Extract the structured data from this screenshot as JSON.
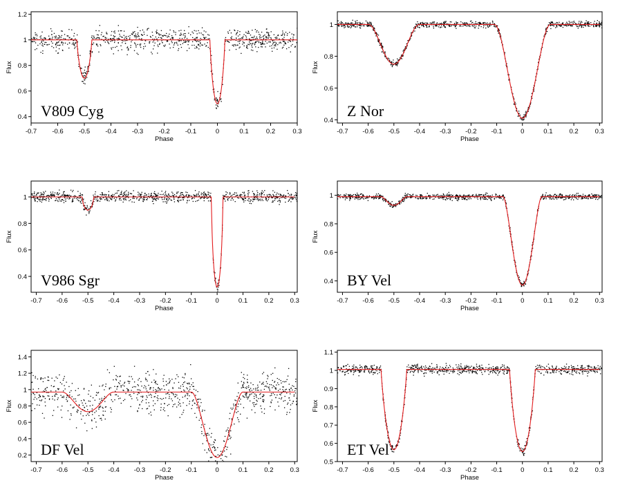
{
  "colors": {
    "model_curve": "#e31a1c",
    "data_points": "#000000",
    "axes": "#000000"
  },
  "chart_data": [
    {
      "type": "scatter",
      "star": "V809 Cyg",
      "xlabel": "Phase",
      "ylabel": "Flux",
      "xlim": [
        -0.7,
        0.3
      ],
      "ylim": [
        0.35,
        1.22
      ],
      "xticks": [
        -0.7,
        -0.6,
        -0.5,
        -0.4,
        -0.3,
        -0.2,
        -0.1,
        0,
        0.1,
        0.2,
        0.3
      ],
      "yticks": [
        0.4,
        0.6,
        0.8,
        1,
        1.2
      ],
      "tick_labels_x": [
        "-0.7",
        "-0.6",
        "-0.5",
        "-0.4",
        "-0.3",
        "-0.2",
        "-0.1",
        "0",
        "0.1",
        "0.2",
        "0.3"
      ],
      "tick_labels_y": [
        "0.4",
        "0.6",
        "0.8",
        "1",
        "1.2"
      ],
      "grid": false,
      "model": {
        "baseline": 1.0,
        "primary_depth": 0.5,
        "primary_halfwidth": 0.028,
        "secondary_depth": 0.3,
        "secondary_halfwidth": 0.028,
        "shape": 0.8
      },
      "noise": 0.05
    },
    {
      "type": "scatter",
      "star": "Z Nor",
      "xlabel": "Phase",
      "ylabel": "Flux",
      "xlim": [
        -0.72,
        0.31
      ],
      "ylim": [
        0.38,
        1.08
      ],
      "xticks": [
        -0.7,
        -0.6,
        -0.5,
        -0.4,
        -0.3,
        -0.2,
        -0.1,
        0,
        0.1,
        0.2,
        0.3
      ],
      "yticks": [
        0.4,
        0.6,
        0.8,
        1
      ],
      "tick_labels_x": [
        "-0.7",
        "-0.6",
        "-0.5",
        "-0.4",
        "-0.3",
        "-0.2",
        "-0.1",
        "0",
        "0.1",
        "0.2",
        "0.3"
      ],
      "tick_labels_y": [
        "0.4",
        "0.6",
        "0.8",
        "1"
      ],
      "grid": false,
      "model": {
        "baseline": 1.0,
        "primary_depth": 0.59,
        "primary_halfwidth": 0.11,
        "secondary_depth": 0.25,
        "secondary_halfwidth": 0.1,
        "shape": 2.2
      },
      "noise": 0.012
    },
    {
      "type": "scatter",
      "star": "V986 Sgr",
      "xlabel": "Phase",
      "ylabel": "Flux",
      "xlim": [
        -0.72,
        0.31
      ],
      "ylim": [
        0.28,
        1.12
      ],
      "xticks": [
        -0.7,
        -0.6,
        -0.5,
        -0.4,
        -0.3,
        -0.2,
        -0.1,
        0,
        0.1,
        0.2,
        0.3
      ],
      "yticks": [
        0.4,
        0.6,
        0.8,
        1
      ],
      "tick_labels_x": [
        "-0.7",
        "-0.6",
        "-0.5",
        "-0.4",
        "-0.3",
        "-0.2",
        "-0.1",
        "0",
        "0.1",
        "0.2",
        "0.3"
      ],
      "tick_labels_y": [
        "0.4",
        "0.6",
        "0.8",
        "1"
      ],
      "grid": false,
      "model": {
        "baseline": 1.0,
        "primary_depth": 0.68,
        "primary_halfwidth": 0.022,
        "secondary_depth": 0.1,
        "secondary_halfwidth": 0.022,
        "shape": 0.6
      },
      "noise": 0.025
    },
    {
      "type": "scatter",
      "star": "BY Vel",
      "xlabel": "Phase",
      "ylabel": "Flux",
      "xlim": [
        -0.72,
        0.31
      ],
      "ylim": [
        0.32,
        1.1
      ],
      "xticks": [
        -0.7,
        -0.6,
        -0.5,
        -0.4,
        -0.3,
        -0.2,
        -0.1,
        0,
        0.1,
        0.2,
        0.3
      ],
      "yticks": [
        0.4,
        0.6,
        0.8,
        1
      ],
      "tick_labels_x": [
        "-0.7",
        "-0.6",
        "-0.5",
        "-0.4",
        "-0.3",
        "-0.2",
        "-0.1",
        "0",
        "0.1",
        "0.2",
        "0.3"
      ],
      "tick_labels_y": [
        "0.4",
        "0.6",
        "0.8",
        "1"
      ],
      "grid": false,
      "model": {
        "baseline": 0.99,
        "primary_depth": 0.62,
        "primary_halfwidth": 0.075,
        "secondary_depth": 0.06,
        "secondary_halfwidth": 0.05,
        "shape": 1.8
      },
      "noise": 0.012
    },
    {
      "type": "scatter",
      "star": "DF Vel",
      "xlabel": "Phase",
      "ylabel": "Flux",
      "xlim": [
        -0.72,
        0.31
      ],
      "ylim": [
        0.12,
        1.48
      ],
      "xticks": [
        -0.7,
        -0.6,
        -0.5,
        -0.4,
        -0.3,
        -0.2,
        -0.1,
        0,
        0.1,
        0.2,
        0.3
      ],
      "yticks": [
        0.2,
        0.4,
        0.6,
        0.8,
        1,
        1.2,
        1.4
      ],
      "tick_labels_x": [
        "-0.7",
        "-0.6",
        "-0.5",
        "-0.4",
        "-0.3",
        "-0.2",
        "-0.1",
        "0",
        "0.1",
        "0.2",
        "0.3"
      ],
      "tick_labels_y": [
        "0.2",
        "0.4",
        "0.6",
        "0.8",
        "1",
        "1.2",
        "1.4"
      ],
      "grid": false,
      "model": {
        "baseline": 0.97,
        "primary_depth": 0.8,
        "primary_halfwidth": 0.1,
        "secondary_depth": 0.24,
        "secondary_halfwidth": 0.1,
        "shape": 2.0
      },
      "noise": 0.15
    },
    {
      "type": "scatter",
      "star": "ET Vel",
      "xlabel": "Phase",
      "ylabel": "Flux",
      "xlim": [
        -0.72,
        0.31
      ],
      "ylim": [
        0.5,
        1.11
      ],
      "xticks": [
        -0.7,
        -0.6,
        -0.5,
        -0.4,
        -0.3,
        -0.2,
        -0.1,
        0,
        0.1,
        0.2,
        0.3
      ],
      "yticks": [
        0.5,
        0.6,
        0.7,
        0.8,
        0.9,
        1,
        1.1
      ],
      "tick_labels_x": [
        "-0.7",
        "-0.6",
        "-0.5",
        "-0.4",
        "-0.3",
        "-0.2",
        "-0.1",
        "0",
        "0.1",
        "0.2",
        "0.3"
      ],
      "tick_labels_y": [
        "0.5",
        "0.6",
        "0.7",
        "0.8",
        "0.9",
        "1",
        "1.1"
      ],
      "grid": false,
      "model": {
        "baseline": 1.005,
        "primary_depth": 0.45,
        "primary_halfwidth": 0.05,
        "secondary_depth": 0.44,
        "secondary_halfwidth": 0.05,
        "shape": 0.9
      },
      "noise": 0.015
    }
  ]
}
